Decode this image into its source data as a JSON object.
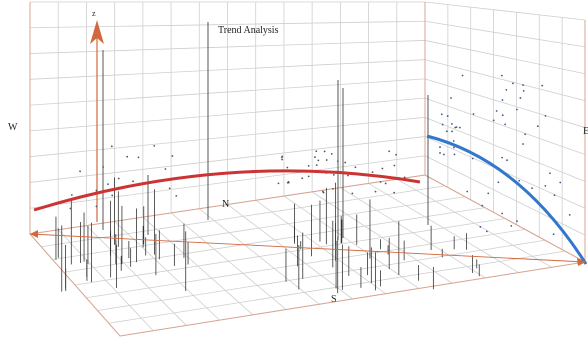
{
  "chart_data": {
    "type": "scatter",
    "title": "Trend Analysis",
    "grid": true,
    "axis_labels": {
      "west": "W",
      "east": "E",
      "north": "N",
      "south": "S",
      "vertical": "z"
    },
    "trend_lines": [
      {
        "plane": "west-east",
        "color": "#cc3333"
      },
      {
        "plane": "south-north",
        "color": "#3377cc"
      }
    ],
    "colors": {
      "west_east_trend": "#cc3333",
      "south_north_trend": "#3377cc",
      "samples": "#333333",
      "axes": "#d9a58f",
      "arrow": "#d2693e"
    }
  }
}
